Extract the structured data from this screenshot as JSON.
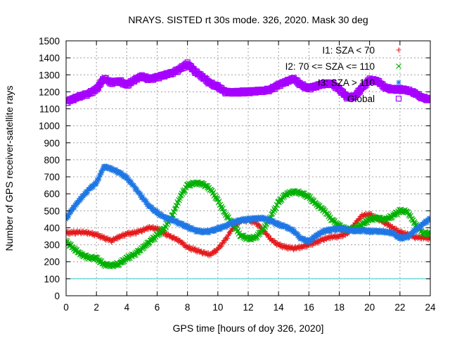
{
  "chart_data": {
    "type": "scatter",
    "title": "NRAYS. SISTED rt 30s mode. 326, 2020. Mask 30 deg",
    "xlabel": "GPS time [hours of doy 326, 2020]",
    "ylabel": "Number of GPS receiver-satellite rays",
    "xlim": [
      0,
      24
    ],
    "ylim": [
      0,
      1500
    ],
    "x_ticks": [
      "0",
      "2",
      "4",
      "6",
      "8",
      "10",
      "12",
      "14",
      "16",
      "18",
      "20",
      "22",
      "24"
    ],
    "y_ticks": [
      "0",
      "100",
      "200",
      "300",
      "400",
      "500",
      "600",
      "700",
      "800",
      "900",
      "1000",
      "1100",
      "1200",
      "1300",
      "1400",
      "1500"
    ],
    "grid": true,
    "legend_position": "top-right",
    "reference_line": {
      "y": 100,
      "color": "#33cccc"
    },
    "series": [
      {
        "name": "I1: SZA < 70",
        "marker": "+",
        "color": "#e41a1c",
        "x": [
          0,
          0.5,
          1,
          1.5,
          2,
          2.5,
          3,
          3.5,
          4,
          4.5,
          5,
          5.5,
          6,
          6.5,
          7,
          7.5,
          8,
          8.5,
          9,
          9.5,
          10,
          10.5,
          11,
          11.5,
          12,
          12.5,
          13,
          13.5,
          14,
          14.5,
          15,
          15.5,
          16,
          16.5,
          17,
          17.5,
          18,
          18.5,
          19,
          19.5,
          20,
          20.5,
          21,
          21.5,
          22,
          22.5,
          23,
          23.5,
          24
        ],
        "y": [
          370,
          372,
          375,
          368,
          360,
          340,
          325,
          345,
          365,
          370,
          385,
          400,
          395,
          365,
          345,
          320,
          285,
          270,
          255,
          240,
          275,
          330,
          400,
          440,
          445,
          430,
          385,
          330,
          300,
          285,
          280,
          285,
          300,
          315,
          335,
          345,
          350,
          365,
          420,
          470,
          480,
          455,
          430,
          400,
          375,
          360,
          345,
          340,
          340
        ]
      },
      {
        "name": "I2: 70 <= SZA <= 110",
        "marker": "x",
        "color": "#00b000",
        "x": [
          0,
          0.5,
          1,
          1.5,
          2,
          2.5,
          3,
          3.5,
          4,
          4.5,
          5,
          5.5,
          6,
          6.5,
          7,
          7.5,
          8,
          8.5,
          9,
          9.5,
          10,
          10.5,
          11,
          11.5,
          12,
          12.5,
          13,
          13.5,
          14,
          14.5,
          15,
          15.5,
          16,
          16.5,
          17,
          17.5,
          18,
          18.5,
          19,
          19.5,
          20,
          20.5,
          21,
          21.5,
          22,
          22.5,
          23,
          23.5,
          24
        ],
        "y": [
          320,
          280,
          240,
          225,
          220,
          185,
          175,
          190,
          220,
          245,
          275,
          320,
          355,
          400,
          470,
          580,
          650,
          665,
          655,
          630,
          560,
          480,
          420,
          355,
          335,
          345,
          390,
          470,
          550,
          600,
          610,
          605,
          580,
          540,
          500,
          450,
          410,
          390,
          395,
          420,
          450,
          460,
          445,
          470,
          500,
          495,
          420,
          370,
          365
        ]
      },
      {
        "name": "I3: SZA > 110",
        "marker": "*",
        "color": "#1f77e4",
        "x": [
          0,
          0.5,
          1,
          1.5,
          2,
          2.5,
          3,
          3.5,
          4,
          4.5,
          5,
          5.5,
          6,
          6.5,
          7,
          7.5,
          8,
          8.5,
          9,
          9.5,
          10,
          10.5,
          11,
          11.5,
          12,
          12.5,
          13,
          13.5,
          14,
          14.5,
          15,
          15.5,
          16,
          16.5,
          17,
          17.5,
          18,
          18.5,
          19,
          19.5,
          20,
          20.5,
          21,
          21.5,
          22,
          22.5,
          23,
          23.5,
          24
        ],
        "y": [
          455,
          520,
          575,
          625,
          665,
          760,
          745,
          725,
          695,
          640,
          580,
          525,
          490,
          460,
          445,
          425,
          405,
          385,
          375,
          380,
          395,
          410,
          430,
          445,
          450,
          455,
          455,
          440,
          420,
          405,
          380,
          335,
          320,
          355,
          380,
          390,
          395,
          390,
          380,
          385,
          380,
          380,
          375,
          370,
          340,
          345,
          385,
          420,
          455
        ]
      },
      {
        "name": "Global",
        "marker": "square",
        "color": "#a600ff",
        "x": [
          0,
          0.5,
          1,
          1.5,
          2,
          2.5,
          3,
          3.5,
          4,
          4.5,
          5,
          5.5,
          6,
          6.5,
          7,
          7.5,
          8,
          8.5,
          9,
          9.5,
          10,
          10.5,
          11,
          11.5,
          12,
          12.5,
          13,
          13.5,
          14,
          14.5,
          15,
          15.5,
          16,
          16.5,
          17,
          17.5,
          18,
          18.5,
          19,
          19.5,
          20,
          20.5,
          21,
          21.5,
          22,
          22.5,
          23,
          23.5,
          24
        ],
        "y": [
          1140,
          1160,
          1175,
          1190,
          1215,
          1280,
          1250,
          1265,
          1240,
          1270,
          1290,
          1275,
          1285,
          1300,
          1310,
          1335,
          1365,
          1320,
          1285,
          1250,
          1230,
          1200,
          1195,
          1200,
          1200,
          1205,
          1205,
          1215,
          1240,
          1260,
          1275,
          1240,
          1220,
          1235,
          1245,
          1250,
          1215,
          1170,
          1170,
          1225,
          1270,
          1265,
          1225,
          1215,
          1215,
          1210,
          1190,
          1165,
          1155
        ]
      }
    ]
  }
}
